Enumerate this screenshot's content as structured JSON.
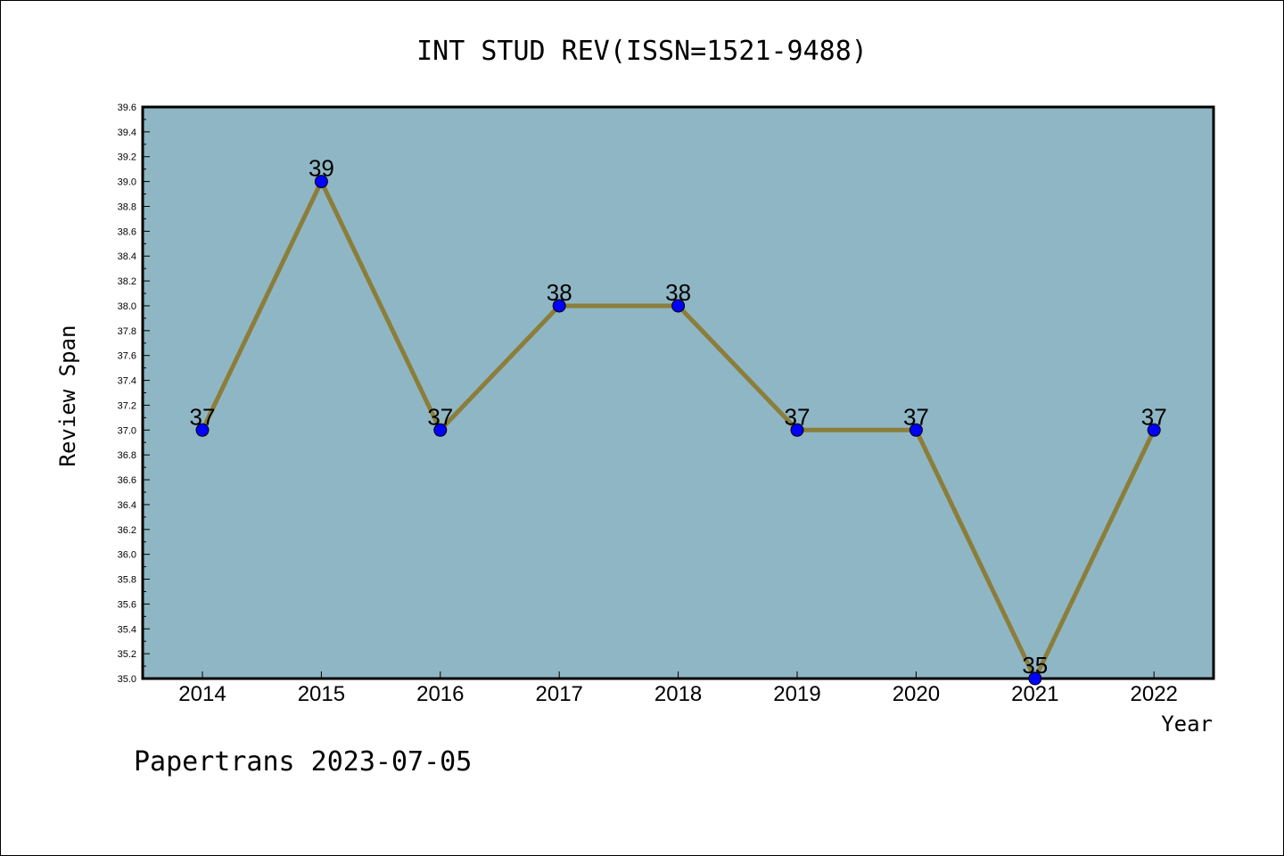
{
  "chart_data": {
    "type": "line",
    "title": "INT STUD REV(ISSN=1521-9488)",
    "xlabel": "Year",
    "ylabel": "Review Span",
    "categories": [
      "2014",
      "2015",
      "2016",
      "2017",
      "2018",
      "2019",
      "2020",
      "2021",
      "2022"
    ],
    "values": [
      37,
      39,
      37,
      38,
      38,
      37,
      37,
      35,
      37
    ],
    "data_labels": [
      "37",
      "39",
      "37",
      "38",
      "38",
      "37",
      "37",
      "35",
      "37"
    ],
    "ylim": [
      35.0,
      39.6
    ],
    "yticks": [
      "35.0",
      "35.2",
      "35.4",
      "35.6",
      "35.8",
      "36.0",
      "36.2",
      "36.4",
      "36.6",
      "36.8",
      "37.0",
      "37.2",
      "37.4",
      "37.6",
      "37.8",
      "38.0",
      "38.2",
      "38.4",
      "38.6",
      "38.8",
      "39.0",
      "39.2",
      "39.4",
      "39.6"
    ],
    "grid": false,
    "colors": {
      "plot_background": "#8fb6c4",
      "line": "#8b7e3a",
      "marker": "#0000ff",
      "axis": "#000000"
    }
  },
  "footer": "Papertrans 2023-07-05"
}
